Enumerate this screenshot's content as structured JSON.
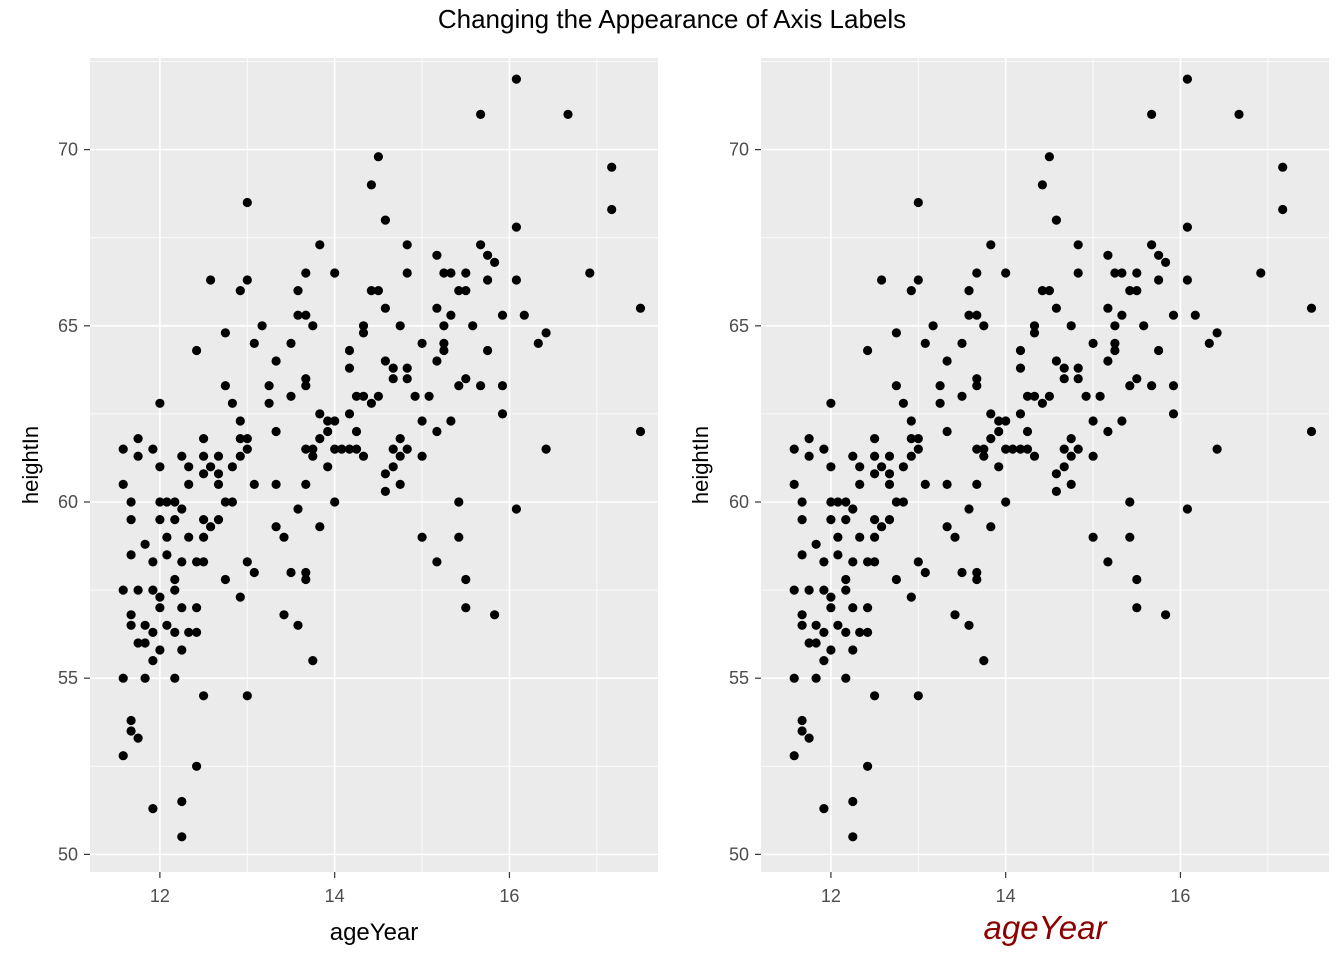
{
  "title": "Changing the Appearance of Axis Labels",
  "colors": {
    "panel_bg": "#ebebeb",
    "grid": "#ffffff",
    "point": "#000000",
    "tick_text": "#4d4d4d",
    "styled_xlabel": "#8b0000"
  },
  "chart_data": [
    {
      "type": "scatter",
      "xlabel": "ageYear",
      "ylabel": "heightIn",
      "xlim": [
        11.2,
        17.7
      ],
      "ylim": [
        49.5,
        72.6
      ],
      "xticks": [
        "12",
        "14",
        "16"
      ],
      "yticks": [
        "50",
        "55",
        "60",
        "65",
        "70"
      ],
      "xlabel_style": "plain",
      "grid": true
    },
    {
      "type": "scatter",
      "xlabel": "ageYear",
      "ylabel": "heightIn",
      "xlim": [
        11.2,
        17.7
      ],
      "ylim": [
        49.5,
        72.6
      ],
      "xticks": [
        "12",
        "14",
        "16"
      ],
      "yticks": [
        "50",
        "55",
        "60",
        "65",
        "70"
      ],
      "xlabel_style": "italic, dark red, large",
      "grid": true
    }
  ],
  "points": [
    [
      11.58,
      61.5
    ],
    [
      11.58,
      60.5
    ],
    [
      11.58,
      57.5
    ],
    [
      11.58,
      55.0
    ],
    [
      11.58,
      52.8
    ],
    [
      11.67,
      60.0
    ],
    [
      11.67,
      59.5
    ],
    [
      11.67,
      58.5
    ],
    [
      11.67,
      56.8
    ],
    [
      11.67,
      56.5
    ],
    [
      11.67,
      53.8
    ],
    [
      11.67,
      53.5
    ],
    [
      11.75,
      61.3
    ],
    [
      11.75,
      61.8
    ],
    [
      11.75,
      57.5
    ],
    [
      11.75,
      56.0
    ],
    [
      11.75,
      53.3
    ],
    [
      11.83,
      56.0
    ],
    [
      11.83,
      55.0
    ],
    [
      11.83,
      58.8
    ],
    [
      11.83,
      56.5
    ],
    [
      11.92,
      61.5
    ],
    [
      11.92,
      58.3
    ],
    [
      11.92,
      56.3
    ],
    [
      11.92,
      57.5
    ],
    [
      11.92,
      51.3
    ],
    [
      11.92,
      55.5
    ],
    [
      12.0,
      62.8
    ],
    [
      12.0,
      61.0
    ],
    [
      12.0,
      60.0
    ],
    [
      12.0,
      59.5
    ],
    [
      12.0,
      57.3
    ],
    [
      12.0,
      57.0
    ],
    [
      12.0,
      55.8
    ],
    [
      12.08,
      58.5
    ],
    [
      12.08,
      56.5
    ],
    [
      12.08,
      60.0
    ],
    [
      12.08,
      59.0
    ],
    [
      12.17,
      56.3
    ],
    [
      12.17,
      60.0
    ],
    [
      12.17,
      57.8
    ],
    [
      12.17,
      55.0
    ],
    [
      12.17,
      57.5
    ],
    [
      12.17,
      59.5
    ],
    [
      12.25,
      61.3
    ],
    [
      12.25,
      59.8
    ],
    [
      12.25,
      58.3
    ],
    [
      12.25,
      57.0
    ],
    [
      12.25,
      55.8
    ],
    [
      12.25,
      51.5
    ],
    [
      12.25,
      50.5
    ],
    [
      12.33,
      61.0
    ],
    [
      12.33,
      60.5
    ],
    [
      12.33,
      59.0
    ],
    [
      12.33,
      56.3
    ],
    [
      12.42,
      64.3
    ],
    [
      12.42,
      58.3
    ],
    [
      12.42,
      57.0
    ],
    [
      12.42,
      56.3
    ],
    [
      12.42,
      52.5
    ],
    [
      12.5,
      61.8
    ],
    [
      12.5,
      61.3
    ],
    [
      12.5,
      60.8
    ],
    [
      12.5,
      59.5
    ],
    [
      12.5,
      58.3
    ],
    [
      12.5,
      54.5
    ],
    [
      12.5,
      59.0
    ],
    [
      12.58,
      66.3
    ],
    [
      12.58,
      61.0
    ],
    [
      12.58,
      59.3
    ],
    [
      12.67,
      61.3
    ],
    [
      12.67,
      60.8
    ],
    [
      12.67,
      60.5
    ],
    [
      12.67,
      59.5
    ],
    [
      12.75,
      64.8
    ],
    [
      12.75,
      63.3
    ],
    [
      12.75,
      60.0
    ],
    [
      12.75,
      57.8
    ],
    [
      12.83,
      62.8
    ],
    [
      12.83,
      61.0
    ],
    [
      12.83,
      60.0
    ],
    [
      12.92,
      66.0
    ],
    [
      12.92,
      62.3
    ],
    [
      12.92,
      61.8
    ],
    [
      12.92,
      61.3
    ],
    [
      12.92,
      57.3
    ],
    [
      13.0,
      68.5
    ],
    [
      13.0,
      66.3
    ],
    [
      13.0,
      61.8
    ],
    [
      13.0,
      61.5
    ],
    [
      13.0,
      58.3
    ],
    [
      13.0,
      54.5
    ],
    [
      13.08,
      64.5
    ],
    [
      13.08,
      60.5
    ],
    [
      13.08,
      58.0
    ],
    [
      13.17,
      65.0
    ],
    [
      13.25,
      63.3
    ],
    [
      13.25,
      62.8
    ],
    [
      13.33,
      64.0
    ],
    [
      13.33,
      62.0
    ],
    [
      13.33,
      60.5
    ],
    [
      13.33,
      59.3
    ],
    [
      13.42,
      59.0
    ],
    [
      13.42,
      56.8
    ],
    [
      13.5,
      64.5
    ],
    [
      13.5,
      63.0
    ],
    [
      13.5,
      58.0
    ],
    [
      13.58,
      66.0
    ],
    [
      13.58,
      65.3
    ],
    [
      13.58,
      59.8
    ],
    [
      13.58,
      56.5
    ],
    [
      13.67,
      66.5
    ],
    [
      13.67,
      65.3
    ],
    [
      13.67,
      63.5
    ],
    [
      13.67,
      63.3
    ],
    [
      13.67,
      61.5
    ],
    [
      13.67,
      60.5
    ],
    [
      13.67,
      58.0
    ],
    [
      13.67,
      57.8
    ],
    [
      13.75,
      65.0
    ],
    [
      13.75,
      61.5
    ],
    [
      13.75,
      61.3
    ],
    [
      13.75,
      55.5
    ],
    [
      13.83,
      67.3
    ],
    [
      13.83,
      62.5
    ],
    [
      13.83,
      61.8
    ],
    [
      13.83,
      59.3
    ],
    [
      13.92,
      62.3
    ],
    [
      13.92,
      62.0
    ],
    [
      13.92,
      61.0
    ],
    [
      14.0,
      66.5
    ],
    [
      14.0,
      62.3
    ],
    [
      14.0,
      61.5
    ],
    [
      14.0,
      60.0
    ],
    [
      14.08,
      61.5
    ],
    [
      14.17,
      64.3
    ],
    [
      14.17,
      63.8
    ],
    [
      14.17,
      62.5
    ],
    [
      14.17,
      61.5
    ],
    [
      14.25,
      62.0
    ],
    [
      14.25,
      63.0
    ],
    [
      14.25,
      61.5
    ],
    [
      14.33,
      65.0
    ],
    [
      14.33,
      64.8
    ],
    [
      14.33,
      63.0
    ],
    [
      14.33,
      61.3
    ],
    [
      14.42,
      69.0
    ],
    [
      14.42,
      66.0
    ],
    [
      14.42,
      62.8
    ],
    [
      14.5,
      69.8
    ],
    [
      14.5,
      66.0
    ],
    [
      14.5,
      63.0
    ],
    [
      14.58,
      68.0
    ],
    [
      14.58,
      65.5
    ],
    [
      14.58,
      64.0
    ],
    [
      14.58,
      60.8
    ],
    [
      14.58,
      60.3
    ],
    [
      14.67,
      63.8
    ],
    [
      14.67,
      63.5
    ],
    [
      14.67,
      61.5
    ],
    [
      14.67,
      61.0
    ],
    [
      14.75,
      65.0
    ],
    [
      14.75,
      61.8
    ],
    [
      14.75,
      61.3
    ],
    [
      14.75,
      60.5
    ],
    [
      14.83,
      67.3
    ],
    [
      14.83,
      66.5
    ],
    [
      14.83,
      63.8
    ],
    [
      14.83,
      63.5
    ],
    [
      14.83,
      61.5
    ],
    [
      14.92,
      63.0
    ],
    [
      15.0,
      64.5
    ],
    [
      15.0,
      62.3
    ],
    [
      15.0,
      61.3
    ],
    [
      15.0,
      59.0
    ],
    [
      15.08,
      63.0
    ],
    [
      15.17,
      67.0
    ],
    [
      15.17,
      65.5
    ],
    [
      15.17,
      64.0
    ],
    [
      15.17,
      62.0
    ],
    [
      15.17,
      58.3
    ],
    [
      15.25,
      66.5
    ],
    [
      15.25,
      65.0
    ],
    [
      15.25,
      64.5
    ],
    [
      15.25,
      64.3
    ],
    [
      15.33,
      66.5
    ],
    [
      15.33,
      65.3
    ],
    [
      15.33,
      62.3
    ],
    [
      15.42,
      66.0
    ],
    [
      15.42,
      63.3
    ],
    [
      15.42,
      60.0
    ],
    [
      15.42,
      59.0
    ],
    [
      15.5,
      66.5
    ],
    [
      15.5,
      66.0
    ],
    [
      15.5,
      63.5
    ],
    [
      15.5,
      57.8
    ],
    [
      15.5,
      57.0
    ],
    [
      15.58,
      65.0
    ],
    [
      15.67,
      71.0
    ],
    [
      15.67,
      67.3
    ],
    [
      15.67,
      63.3
    ],
    [
      15.75,
      67.0
    ],
    [
      15.75,
      66.3
    ],
    [
      15.75,
      64.3
    ],
    [
      15.83,
      66.8
    ],
    [
      15.83,
      56.8
    ],
    [
      15.92,
      65.3
    ],
    [
      15.92,
      63.3
    ],
    [
      15.92,
      62.5
    ],
    [
      16.08,
      72.0
    ],
    [
      16.08,
      67.8
    ],
    [
      16.08,
      66.3
    ],
    [
      16.08,
      59.8
    ],
    [
      16.17,
      65.3
    ],
    [
      16.33,
      64.5
    ],
    [
      16.42,
      64.8
    ],
    [
      16.42,
      61.5
    ],
    [
      16.67,
      71.0
    ],
    [
      16.92,
      66.5
    ],
    [
      17.17,
      69.5
    ],
    [
      17.17,
      68.3
    ],
    [
      17.5,
      65.5
    ],
    [
      17.5,
      62.0
    ]
  ]
}
